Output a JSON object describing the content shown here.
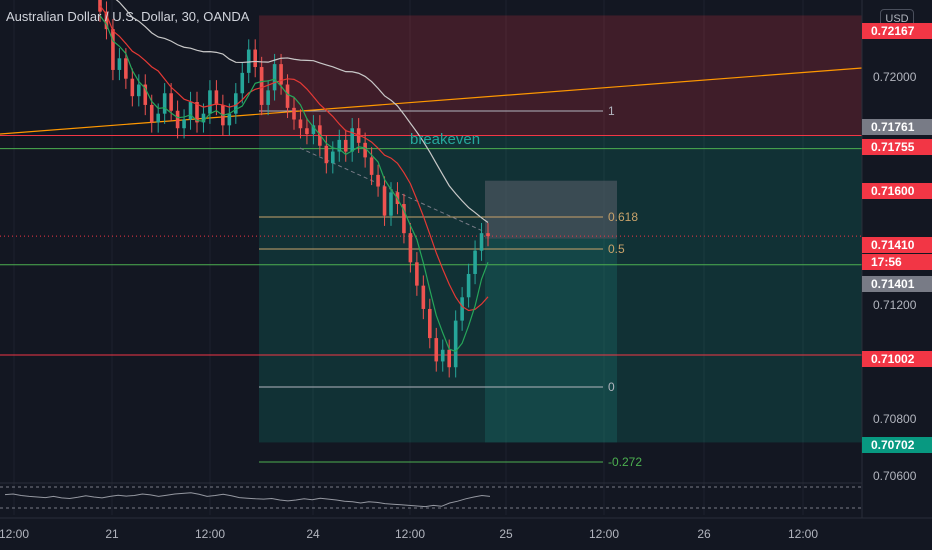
{
  "header": {
    "title": "Australian Dollar / U.S. Dollar, 30, OANDA",
    "currency": "USD"
  },
  "price_axis": {
    "ticks": [
      "0.72000",
      "0.71200",
      "0.70800",
      "0.70600"
    ],
    "badges": [
      {
        "label": "0.72167",
        "color": "#f23645"
      },
      {
        "label": "0.71761",
        "color": "#787b86"
      },
      {
        "label": "0.71755",
        "color": "#f23645"
      },
      {
        "label": "0.71600",
        "color": "#f23645"
      },
      {
        "label": "0.71410",
        "color": "#f23645"
      },
      {
        "label": "17:56",
        "color": "#f23645"
      },
      {
        "label": "0.71401",
        "color": "#787b86"
      },
      {
        "label": "0.71002",
        "color": "#f23645"
      },
      {
        "label": "0.70702",
        "color": "#089981"
      }
    ]
  },
  "time_axis": {
    "ticks": [
      "12:00",
      "21",
      "12:00",
      "24",
      "12:00",
      "25",
      "12:00",
      "26",
      "12:00"
    ]
  },
  "fib_levels": [
    "1",
    "0.618",
    "0.5",
    "0",
    "-0.272"
  ],
  "drawings": {
    "breakeven_label": "breakeven"
  },
  "colors": {
    "background": "#131722",
    "bull": "#26a69a",
    "bear": "#ef5350",
    "stop_zone": "#f2364533",
    "target_zone": "#08998133",
    "trendline": "#ff9800",
    "ma_slow": "#c8c8c8",
    "ma_mid": "#e53935",
    "ma_fast": "#26a65a"
  },
  "chart_data": {
    "type": "candlestick",
    "instrument": "AUD/USD",
    "timeframe": "30",
    "ylim": [
      0.7058,
      0.7222
    ],
    "current_price": 0.7141,
    "countdown": "17:56",
    "levels": {
      "stop_loss": 0.72167,
      "entry_high": 0.71761,
      "entry": 0.71755,
      "level_1": 0.716,
      "fib_0_618": 0.7151,
      "fib_0_5": 0.71401,
      "level_2": 0.71002,
      "fib_0": 0.70935,
      "target": 0.70702,
      "fib_neg_0_272": 0.70655
    },
    "candles_close": [
      0.7218,
      0.7212,
      0.7198,
      0.7202,
      0.7195,
      0.7189,
      0.7193,
      0.7186,
      0.718,
      0.7183,
      0.719,
      0.7184,
      0.7178,
      0.7181,
      0.7187,
      0.718,
      0.7183,
      0.7191,
      0.7186,
      0.7179,
      0.7183,
      0.719,
      0.7197,
      0.7205,
      0.7199,
      0.7186,
      0.7191,
      0.72,
      0.7193,
      0.7185,
      0.7181,
      0.7178,
      0.7176,
      0.7179,
      0.7172,
      0.7166,
      0.717,
      0.7174,
      0.717,
      0.7178,
      0.7173,
      0.7168,
      0.7162,
      0.7158,
      0.7148,
      0.7156,
      0.7152,
      0.7142,
      0.7132,
      0.7124,
      0.7116,
      0.7106,
      0.7098,
      0.7102,
      0.7096,
      0.7112,
      0.712,
      0.7128,
      0.7136,
      0.7142,
      0.7141
    ],
    "rsi": [
      58,
      60,
      55,
      52,
      50,
      48,
      52,
      47,
      45,
      49,
      54,
      50,
      47,
      52,
      56,
      53,
      55,
      60,
      57,
      52,
      56,
      60,
      62,
      64,
      59,
      52,
      55,
      59,
      54,
      48,
      46,
      44,
      43,
      45,
      40,
      37,
      40,
      44,
      41,
      46,
      43,
      40,
      36,
      34,
      30,
      34,
      32,
      28,
      26,
      24,
      22,
      20,
      18,
      22,
      19,
      30,
      36,
      44,
      50,
      55,
      52
    ]
  }
}
